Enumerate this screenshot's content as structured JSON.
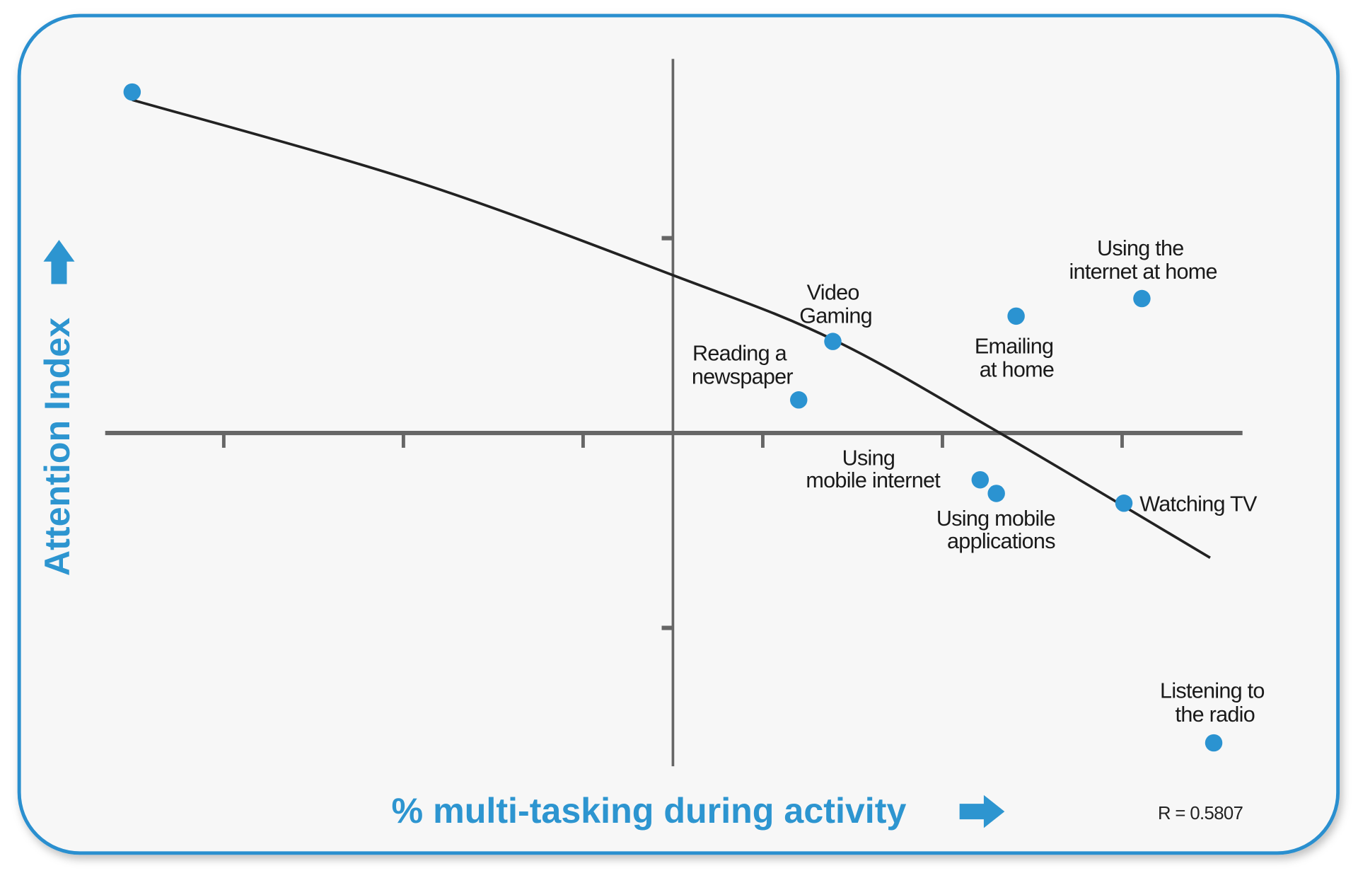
{
  "chart_data": {
    "type": "scatter",
    "title": "",
    "xlabel": "% multi-tasking during activity",
    "ylabel": "Attention Index",
    "xlim": [
      -3.16,
      3.17
    ],
    "ylim": [
      -1.71,
      1.92
    ],
    "x_ticks": [
      -2.5,
      -1.5,
      -0.5,
      0.5,
      1.5,
      2.5
    ],
    "y_ticks": [
      1,
      -1
    ],
    "tick_labels_shown": false,
    "grid": false,
    "legend": "none",
    "annotation": "R = 0.5807",
    "colors": {
      "points": "#2b93d1",
      "axis_title": "#2d95d0",
      "axes": "#666666",
      "trend": "#222222",
      "border": "#2a8fcf"
    },
    "points": [
      {
        "label_lines": [],
        "x": -3.01,
        "y": 1.75
      },
      {
        "label_lines": [
          "Video",
          "Gaming"
        ],
        "x": 0.89,
        "y": 0.47
      },
      {
        "label_lines": [
          "Reading a",
          "newspaper"
        ],
        "x": 0.7,
        "y": 0.17
      },
      {
        "label_lines": [
          "Emailing",
          "at home"
        ],
        "x": 1.91,
        "y": 0.6
      },
      {
        "label_lines": [
          "Using the",
          "internet at home"
        ],
        "x": 2.61,
        "y": 0.69
      },
      {
        "label_lines": [
          "Using",
          "mobile internet"
        ],
        "x": 1.71,
        "y": -0.24
      },
      {
        "label_lines": [
          "Using mobile",
          "applications"
        ],
        "x": 1.8,
        "y": -0.31
      },
      {
        "label_lines": [
          "Watching TV"
        ],
        "x": 2.51,
        "y": -0.36
      },
      {
        "label_lines": [
          "Listening to",
          "the radio"
        ],
        "x": 3.01,
        "y": -1.59
      }
    ],
    "trendline": {
      "type": "curve",
      "points": [
        [
          -3.01,
          1.71
        ],
        [
          -1.43,
          1.29
        ],
        [
          0,
          0.81
        ],
        [
          0.89,
          0.48
        ],
        [
          1.82,
          0
        ],
        [
          2.99,
          -0.64
        ]
      ]
    }
  }
}
